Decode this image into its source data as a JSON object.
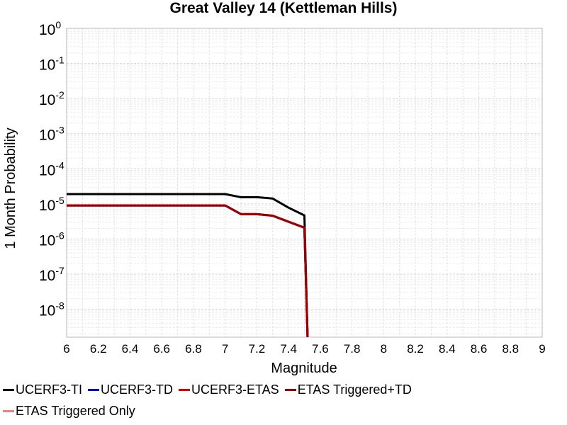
{
  "chart_data": {
    "type": "line",
    "title": "Great Valley 14 (Kettleman Hills)",
    "xlabel": "Magnitude",
    "ylabel": "1 Month Probability",
    "xlim": [
      6,
      9
    ],
    "ylim": [
      1.6e-09,
      1
    ],
    "y_scale": "log",
    "grid": true,
    "legend_position": "bottom",
    "x_ticks": [
      "6",
      "6.2",
      "6.4",
      "6.6",
      "6.8",
      "7",
      "7.2",
      "7.4",
      "7.6",
      "7.8",
      "8",
      "8.2",
      "8.4",
      "8.6",
      "8.8",
      "9"
    ],
    "y_ticks": [
      {
        "value": 1,
        "exp": "0"
      },
      {
        "value": 0.1,
        "exp": "-1"
      },
      {
        "value": 0.01,
        "exp": "-2"
      },
      {
        "value": 0.001,
        "exp": "-3"
      },
      {
        "value": 0.0001,
        "exp": "-4"
      },
      {
        "value": 1e-05,
        "exp": "-5"
      },
      {
        "value": 1e-06,
        "exp": "-6"
      },
      {
        "value": 1e-07,
        "exp": "-7"
      },
      {
        "value": 1e-08,
        "exp": "-8"
      }
    ],
    "y_tick_base": "10",
    "series": [
      {
        "name": "UCERF3-TI",
        "color": "#000000",
        "x": [
          6.0,
          6.1,
          6.2,
          6.3,
          6.4,
          6.5,
          6.6,
          6.7,
          6.8,
          6.9,
          7.0,
          7.1,
          7.2,
          7.3,
          7.4,
          7.5,
          7.52
        ],
        "y": [
          1.9e-05,
          1.9e-05,
          1.9e-05,
          1.9e-05,
          1.9e-05,
          1.9e-05,
          1.9e-05,
          1.9e-05,
          1.9e-05,
          1.9e-05,
          1.9e-05,
          1.55e-05,
          1.55e-05,
          1.42e-05,
          7.8e-06,
          4.7e-06,
          1e-09
        ]
      },
      {
        "name": "UCERF3-TD",
        "color": "#0000cc",
        "x": [
          6.0,
          6.1,
          6.2,
          6.3,
          6.4,
          6.5,
          6.6,
          6.7,
          6.8,
          6.9,
          7.0,
          7.1,
          7.2,
          7.3,
          7.4,
          7.5,
          7.52
        ],
        "y": [
          9e-06,
          9e-06,
          9e-06,
          9e-06,
          9e-06,
          9e-06,
          9e-06,
          9e-06,
          9e-06,
          9e-06,
          9e-06,
          5.1e-06,
          5.1e-06,
          4.6e-06,
          3.1e-06,
          2.1e-06,
          1e-09
        ]
      },
      {
        "name": "UCERF3-ETAS",
        "color": "#dd0000",
        "x": [
          6.0,
          6.1,
          6.2,
          6.3,
          6.4,
          6.5,
          6.6,
          6.7,
          6.8,
          6.9,
          7.0,
          7.1,
          7.2,
          7.3,
          7.4,
          7.5,
          7.52
        ],
        "y": [
          9e-06,
          9e-06,
          9e-06,
          9e-06,
          9e-06,
          9e-06,
          9e-06,
          9e-06,
          9e-06,
          9e-06,
          9e-06,
          5.1e-06,
          5.1e-06,
          4.6e-06,
          3.1e-06,
          2.1e-06,
          1e-09
        ]
      },
      {
        "name": "ETAS Triggered+TD",
        "color": "#990000",
        "x": [
          6.0,
          6.1,
          6.2,
          6.3,
          6.4,
          6.5,
          6.6,
          6.7,
          6.8,
          6.9,
          7.0,
          7.1,
          7.2,
          7.3,
          7.4,
          7.5,
          7.52
        ],
        "y": [
          9e-06,
          9e-06,
          9e-06,
          9e-06,
          9e-06,
          9e-06,
          9e-06,
          9e-06,
          9e-06,
          9e-06,
          9e-06,
          5.1e-06,
          5.1e-06,
          4.6e-06,
          3.1e-06,
          2.1e-06,
          1e-09
        ]
      },
      {
        "name": "ETAS Triggered Only",
        "color": "#f08080",
        "x": [],
        "y": []
      }
    ]
  }
}
